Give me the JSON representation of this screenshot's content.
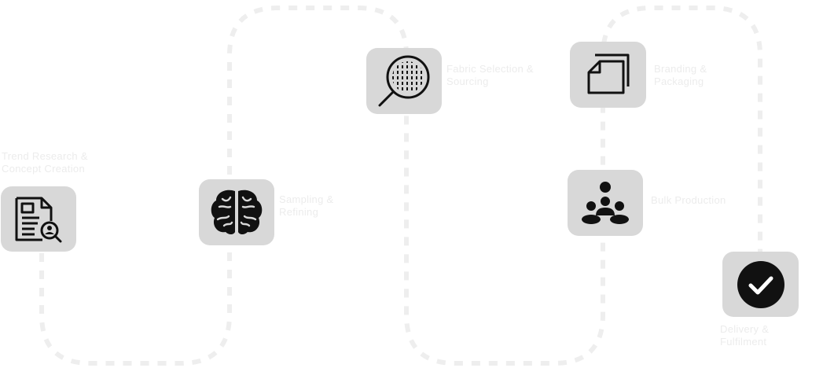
{
  "steps": [
    {
      "label": "Trend Research & Concept Creation",
      "icon": "document-search-icon"
    },
    {
      "label": "Sampling & Refining",
      "icon": "brain-icon"
    },
    {
      "label": "Fabric Selection & Sourcing",
      "icon": "fabric-magnifier-icon"
    },
    {
      "label": "Branding & Packaging",
      "icon": "package-icon"
    },
    {
      "label": "Bulk Production",
      "icon": "team-hierarchy-icon"
    },
    {
      "label": "Delivery & Fulfilment",
      "icon": "check-circle-icon"
    }
  ],
  "colors": {
    "icon_tile": "#d8d8d8",
    "connector": "#eeeeee",
    "label_text": "#ececec",
    "icon_glyph": "#111111"
  }
}
